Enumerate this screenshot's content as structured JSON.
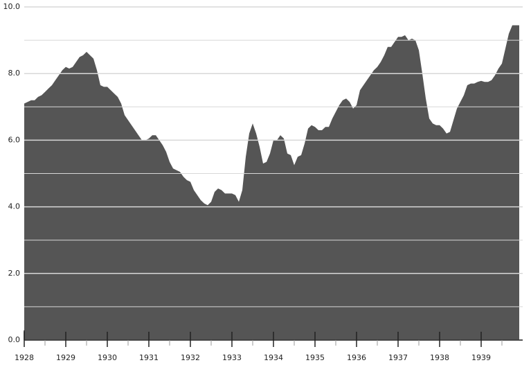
{
  "chart_data": {
    "type": "area",
    "color": "#555555",
    "grid": true,
    "categories": [
      "1928",
      null,
      null,
      null,
      null,
      null,
      null,
      null,
      null,
      null,
      null,
      null,
      "1929",
      null,
      null,
      null,
      null,
      null,
      null,
      null,
      null,
      null,
      null,
      null,
      "1930",
      null,
      null,
      null,
      null,
      null,
      null,
      null,
      null,
      null,
      null,
      null,
      "1931",
      null,
      null,
      null,
      null,
      null,
      null,
      null,
      null,
      null,
      null,
      null,
      "1932",
      null,
      null,
      null,
      null,
      null,
      null,
      null,
      null,
      null,
      null,
      null,
      "1933",
      null,
      null,
      null,
      null,
      null,
      null,
      null,
      null,
      null,
      null,
      null,
      "1934",
      null,
      null,
      null,
      null,
      null,
      null,
      null,
      null,
      null,
      null,
      null,
      "1935",
      null,
      null,
      null,
      null,
      null,
      null,
      null,
      null,
      null,
      null,
      null,
      "1936",
      null,
      null,
      null,
      null,
      null,
      null,
      null,
      null,
      null,
      null,
      null,
      "1937",
      null,
      null,
      null,
      null,
      null,
      null,
      null,
      null,
      null,
      null,
      null,
      "1938",
      null,
      null,
      null,
      null,
      null,
      null,
      null,
      null,
      null,
      null,
      null,
      "1939",
      null,
      null,
      null,
      null,
      null,
      null,
      null,
      null,
      null,
      null,
      null
    ],
    "values": [
      7.1,
      7.15,
      7.2,
      7.2,
      7.3,
      7.35,
      7.45,
      7.55,
      7.65,
      7.8,
      7.95,
      8.1,
      8.2,
      8.15,
      8.2,
      8.35,
      8.5,
      8.55,
      8.65,
      8.55,
      8.45,
      8.1,
      7.65,
      7.6,
      7.6,
      7.5,
      7.4,
      7.3,
      7.1,
      6.75,
      6.6,
      6.45,
      6.3,
      6.15,
      6.0,
      6.0,
      6.05,
      6.15,
      6.15,
      6.0,
      5.85,
      5.65,
      5.35,
      5.15,
      5.1,
      5.05,
      4.9,
      4.8,
      4.75,
      4.5,
      4.35,
      4.2,
      4.1,
      4.05,
      4.15,
      4.45,
      4.55,
      4.5,
      4.4,
      4.4,
      4.4,
      4.35,
      4.15,
      4.5,
      5.5,
      6.2,
      6.5,
      6.2,
      5.8,
      5.3,
      5.35,
      5.6,
      6.0,
      6.0,
      6.15,
      6.05,
      5.6,
      5.55,
      5.25,
      5.5,
      5.55,
      5.9,
      6.35,
      6.45,
      6.4,
      6.3,
      6.3,
      6.4,
      6.4,
      6.65,
      6.85,
      7.05,
      7.2,
      7.25,
      7.15,
      6.95,
      7.05,
      7.5,
      7.65,
      7.8,
      7.95,
      8.1,
      8.2,
      8.35,
      8.55,
      8.8,
      8.8,
      8.95,
      9.1,
      9.1,
      9.15,
      9.0,
      9.05,
      9.0,
      8.7,
      8.0,
      7.25,
      6.65,
      6.5,
      6.45,
      6.45,
      6.35,
      6.2,
      6.25,
      6.6,
      6.95,
      7.15,
      7.35,
      7.65,
      7.7,
      7.7,
      7.75,
      7.78,
      7.75,
      7.75,
      7.8,
      7.95,
      8.15,
      8.3,
      8.75,
      9.2,
      9.45,
      9.45,
      9.45
    ],
    "ylim": [
      0,
      10
    ],
    "yticks": [
      {
        "value": 0,
        "label": "0.0"
      },
      {
        "value": 2,
        "label": "2.0"
      },
      {
        "value": 4,
        "label": "4.0"
      },
      {
        "value": 6,
        "label": "6.0"
      },
      {
        "value": 8,
        "label": "8.0"
      },
      {
        "value": 10,
        "label": "10.0"
      }
    ]
  }
}
